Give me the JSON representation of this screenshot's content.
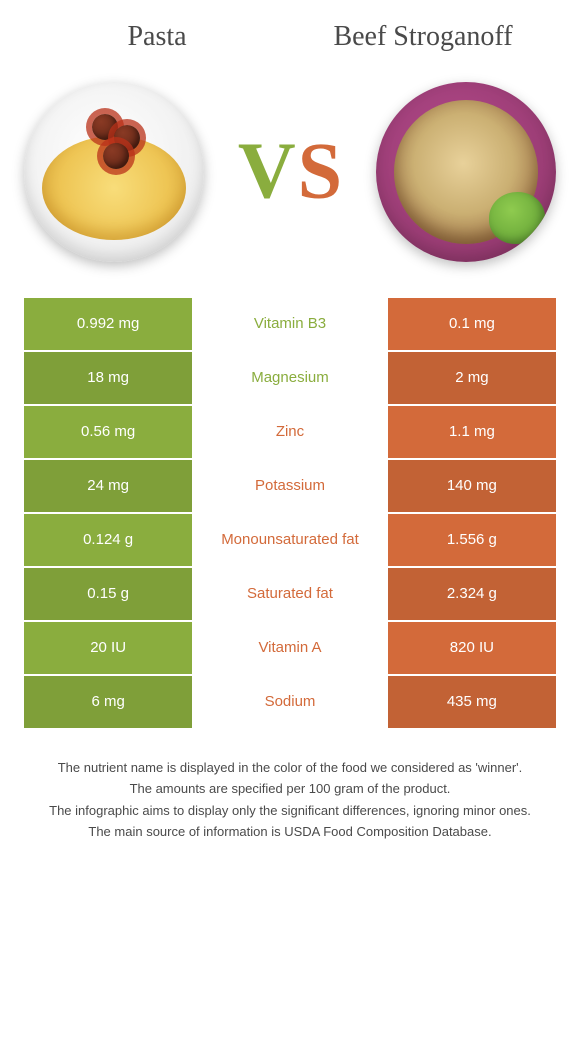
{
  "header": {
    "left_title": "Pasta",
    "right_title": "Beef Stroganoff"
  },
  "vs": {
    "v": "V",
    "s": "S"
  },
  "colors": {
    "left_col": "#8aad3e",
    "right_col": "#d36a3a",
    "left_text": "#8aad3e",
    "right_text": "#d36a3a",
    "row_alt_darken": 0.92,
    "mid_bg": "#ffffff",
    "footer_text": "#4a4a4a"
  },
  "table": {
    "rows": [
      {
        "left": "0.992 mg",
        "label": "Vitamin B3",
        "right": "0.1 mg",
        "winner": "left"
      },
      {
        "left": "18 mg",
        "label": "Magnesium",
        "right": "2 mg",
        "winner": "left"
      },
      {
        "left": "0.56 mg",
        "label": "Zinc",
        "right": "1.1 mg",
        "winner": "right"
      },
      {
        "left": "24 mg",
        "label": "Potassium",
        "right": "140 mg",
        "winner": "right"
      },
      {
        "left": "0.124 g",
        "label": "Monounsaturated fat",
        "right": "1.556 g",
        "winner": "right"
      },
      {
        "left": "0.15 g",
        "label": "Saturated fat",
        "right": "2.324 g",
        "winner": "right"
      },
      {
        "left": "20 IU",
        "label": "Vitamin A",
        "right": "820 IU",
        "winner": "right"
      },
      {
        "left": "6 mg",
        "label": "Sodium",
        "right": "435 mg",
        "winner": "right"
      }
    ]
  },
  "footer": {
    "lines": [
      "The nutrient name is displayed in the color of the food we considered as 'winner'.",
      "The amounts are specified per 100 gram of the product.",
      "The infographic aims to display only the significant differences, ignoring minor ones.",
      "The main source of information is USDA Food Composition Database."
    ]
  }
}
